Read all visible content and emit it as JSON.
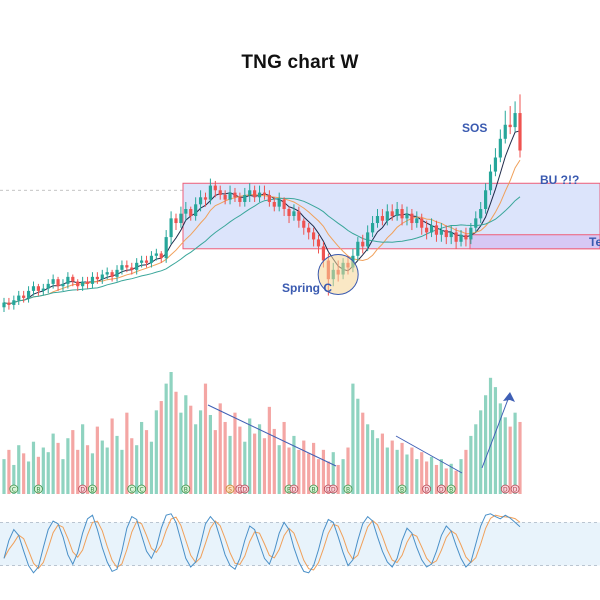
{
  "title": "TNG chart W",
  "colors": {
    "up": "#26a69a",
    "down": "#ef5350",
    "up_volume": "#8fd3c0",
    "down_volume": "#f4a6a4",
    "range_box_fill": "#dce4fb",
    "range_box_border": "#ef5d78",
    "test_zone_fill": "#d7c8f4",
    "annotation": "#3a5ab0",
    "arrow": "#3f5fb5",
    "ma_fast": "#1f2b4a",
    "ma_mid": "#f0a05a",
    "ma_slow": "#3aa69a",
    "stoch_k": "#4a90c8",
    "stoch_d": "#f0a05a",
    "oscillator_band": "#e8f3fb"
  },
  "annotations": {
    "sos": "SOS",
    "bu": "BU ?!?",
    "spring": "Spring C",
    "test": "Te"
  },
  "volume_markers": [
    "C",
    "B",
    "D",
    "B",
    "C",
    "C",
    "B",
    "S",
    "D",
    "D",
    "B",
    "D",
    "B",
    "D",
    "D",
    "B",
    "B",
    "D",
    "B",
    "D",
    "B",
    "D",
    "D"
  ],
  "chart_data": {
    "type": "candlestick",
    "title": "TNG chart W",
    "xlabel": "",
    "ylabel": "",
    "grid": false,
    "candles": {
      "open": [
        8,
        10,
        9,
        11,
        13,
        12,
        15,
        17,
        15,
        16,
        18,
        20,
        17,
        18,
        21,
        19,
        17,
        19,
        18,
        21,
        20,
        22,
        23,
        21,
        24,
        26,
        25,
        24,
        27,
        28,
        27,
        30,
        31,
        29,
        38,
        46,
        44,
        48,
        50,
        47,
        52,
        55,
        54,
        60,
        58,
        56,
        54,
        57,
        55,
        53,
        56,
        58,
        55,
        57,
        56,
        53,
        51,
        54,
        50,
        47,
        49,
        45,
        42,
        40,
        37,
        34,
        28,
        20,
        24,
        22,
        27,
        25,
        30,
        36,
        34,
        40,
        44,
        47,
        45,
        49,
        47,
        50,
        46,
        48,
        44,
        46,
        42,
        40,
        43,
        39,
        41,
        38,
        40,
        36,
        39,
        37,
        42,
        46,
        50,
        58,
        66,
        72,
        80,
        86,
        85,
        91
      ],
      "close": [
        10,
        9,
        11,
        13,
        12,
        15,
        17,
        15,
        16,
        18,
        20,
        17,
        18,
        21,
        19,
        17,
        19,
        18,
        21,
        20,
        22,
        23,
        21,
        24,
        26,
        25,
        24,
        27,
        28,
        27,
        30,
        31,
        29,
        38,
        46,
        44,
        48,
        50,
        47,
        52,
        55,
        54,
        60,
        58,
        56,
        54,
        57,
        55,
        53,
        56,
        58,
        55,
        57,
        56,
        53,
        51,
        54,
        50,
        47,
        49,
        45,
        42,
        40,
        37,
        34,
        28,
        20,
        24,
        22,
        27,
        25,
        30,
        36,
        34,
        40,
        44,
        47,
        45,
        49,
        47,
        50,
        46,
        48,
        44,
        46,
        42,
        40,
        43,
        39,
        41,
        38,
        40,
        36,
        39,
        37,
        42,
        46,
        50,
        58,
        66,
        72,
        80,
        86,
        85,
        91,
        75
      ],
      "high": [
        12,
        12,
        13,
        15,
        15,
        17,
        19,
        18,
        18,
        20,
        22,
        21,
        20,
        23,
        22,
        20,
        21,
        21,
        23,
        23,
        24,
        25,
        24,
        26,
        28,
        28,
        27,
        29,
        30,
        30,
        32,
        33,
        32,
        41,
        49,
        48,
        51,
        53,
        51,
        55,
        58,
        57,
        63,
        62,
        60,
        58,
        60,
        59,
        57,
        59,
        61,
        60,
        60,
        60,
        58,
        55,
        57,
        55,
        51,
        52,
        51,
        46,
        44,
        42,
        39,
        36,
        31,
        27,
        28,
        29,
        30,
        33,
        38,
        39,
        43,
        47,
        50,
        50,
        52,
        52,
        53,
        52,
        51,
        50,
        49,
        48,
        45,
        46,
        45,
        44,
        43,
        43,
        42,
        41,
        42,
        44,
        49,
        53,
        61,
        69,
        76,
        84,
        92,
        94,
        96,
        99
      ],
      "low": [
        6,
        7,
        7,
        9,
        10,
        10,
        13,
        13,
        13,
        14,
        16,
        15,
        15,
        16,
        17,
        15,
        15,
        16,
        16,
        18,
        18,
        20,
        19,
        19,
        22,
        23,
        22,
        22,
        25,
        25,
        25,
        28,
        27,
        27,
        35,
        41,
        42,
        45,
        45,
        45,
        49,
        51,
        52,
        55,
        54,
        52,
        52,
        53,
        51,
        51,
        53,
        53,
        53,
        54,
        51,
        49,
        49,
        47,
        44,
        45,
        42,
        39,
        37,
        34,
        31,
        25,
        13,
        17,
        19,
        20,
        22,
        23,
        28,
        31,
        32,
        38,
        42,
        43,
        43,
        45,
        45,
        43,
        43,
        41,
        42,
        39,
        37,
        38,
        36,
        36,
        35,
        35,
        33,
        34,
        34,
        35,
        40,
        44,
        48,
        56,
        64,
        70,
        78,
        82,
        83,
        72
      ]
    },
    "volume": [
      30,
      38,
      25,
      42,
      35,
      28,
      45,
      32,
      40,
      36,
      52,
      44,
      30,
      48,
      55,
      38,
      60,
      42,
      35,
      58,
      46,
      40,
      65,
      50,
      38,
      70,
      48,
      42,
      62,
      55,
      45,
      72,
      80,
      95,
      105,
      88,
      70,
      85,
      76,
      60,
      72,
      95,
      68,
      55,
      78,
      62,
      50,
      70,
      58,
      45,
      65,
      52,
      60,
      48,
      75,
      56,
      42,
      62,
      40,
      50,
      38,
      46,
      35,
      44,
      30,
      38,
      28,
      36,
      25,
      30,
      40,
      95,
      82,
      70,
      60,
      55,
      48,
      52,
      40,
      46,
      38,
      44,
      34,
      40,
      30,
      36,
      28,
      32,
      25,
      30,
      22,
      26,
      20,
      30,
      38,
      50,
      60,
      72,
      85,
      100,
      92,
      78,
      66,
      58,
      70,
      62
    ],
    "stochastic": {
      "k": [
        30,
        55,
        70,
        62,
        40,
        20,
        10,
        18,
        45,
        70,
        82,
        78,
        60,
        35,
        22,
        38,
        65,
        85,
        90,
        70,
        45,
        25,
        12,
        15,
        40,
        72,
        88,
        84,
        62,
        40,
        30,
        45,
        72,
        90,
        92,
        80,
        55,
        30,
        18,
        25,
        50,
        78,
        88,
        80,
        58,
        35,
        20,
        15,
        30,
        55,
        75,
        70,
        50,
        30,
        22,
        40,
        65,
        80,
        70,
        45,
        25,
        12,
        10,
        20,
        42,
        68,
        84,
        80,
        60,
        38,
        20,
        28,
        55,
        78,
        88,
        82,
        60,
        40,
        25,
        18,
        30,
        55,
        72,
        65,
        45,
        28,
        18,
        22,
        40,
        62,
        75,
        68,
        48,
        30,
        18,
        25,
        50,
        75,
        90,
        92,
        88,
        85,
        90,
        86,
        80,
        74
      ],
      "overbought": 80,
      "oversold": 20
    }
  }
}
